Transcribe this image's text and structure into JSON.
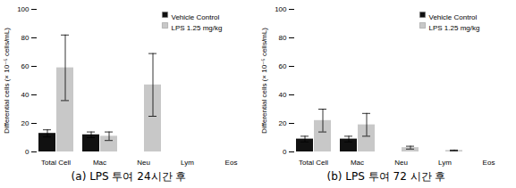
{
  "chart_data": [
    {
      "type": "bar",
      "title": "(a) LPS 투여 24시간 후",
      "categories": [
        "Total Cell",
        "Mac",
        "Neu",
        "Lym",
        "Eos"
      ],
      "series": [
        {
          "name": "Vehicle Control",
          "color": "#111111",
          "values": [
            13,
            12,
            0,
            0,
            0
          ],
          "errors": [
            2.5,
            2,
            0,
            0,
            0
          ]
        },
        {
          "name": "LPS 1.25 mg/kg",
          "color": "#c8c8c8",
          "values": [
            59,
            11,
            47,
            0,
            0
          ],
          "errors": [
            23,
            3,
            22,
            0,
            0
          ]
        }
      ],
      "ylabel": "Differential cells (× 10⁻⁵ cells/mL)",
      "ylim": [
        0,
        100
      ],
      "yticks": [
        0,
        20,
        40,
        60,
        80,
        100
      ],
      "grid": false,
      "legend": "upper right"
    },
    {
      "type": "bar",
      "title": "(b) LPS 투여 72 시간 후",
      "categories": [
        "Total Cell",
        "Mac",
        "Neu",
        "Lym",
        "Eos"
      ],
      "series": [
        {
          "name": "Vehicle Control",
          "color": "#111111",
          "values": [
            9,
            9,
            0,
            0,
            0
          ],
          "errors": [
            2,
            2,
            0,
            0,
            0
          ]
        },
        {
          "name": "LPS 1.25 mg/kg",
          "color": "#c8c8c8",
          "values": [
            22,
            19,
            3,
            1,
            0
          ],
          "errors": [
            8,
            8,
            1,
            0.3,
            0
          ]
        }
      ],
      "ylabel": "Differential cells (× 10⁻⁵ cells/mL)",
      "ylim": [
        0,
        100
      ],
      "yticks": [
        0,
        20,
        40,
        60,
        80,
        100
      ],
      "grid": false,
      "legend": "upper right"
    }
  ]
}
